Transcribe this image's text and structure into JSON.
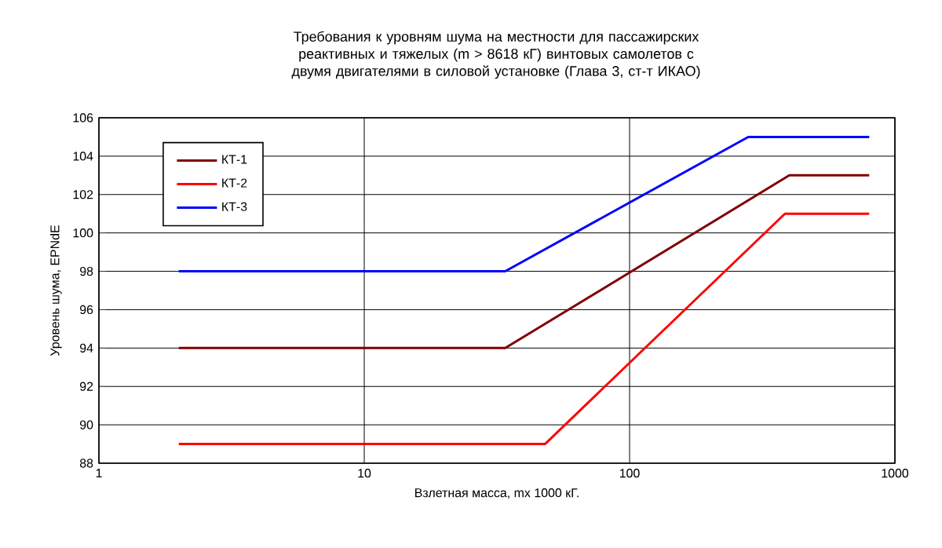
{
  "chart_data": {
    "type": "line",
    "title": "Требования к уровням шума на местности для пассажирских реактивных и тяжелых (m > 8618 кГ) винтовых самолетов с двумя двигателями в силовой установке (Глава 3, ст-т ИКАО)",
    "xlabel": "Взлетная масса, mx 1000 кГ.",
    "ylabel": "Уровень шума, EPNdE",
    "log": "x",
    "xlim": [
      1,
      1000
    ],
    "xticks": [
      1,
      10,
      100,
      1000
    ],
    "ylim": [
      88,
      106
    ],
    "yticks": [
      88,
      90,
      92,
      94,
      96,
      98,
      100,
      102,
      104,
      106
    ],
    "grid": true,
    "legend": "top left",
    "marker": "none",
    "line_style": "solid",
    "series": [
      {
        "name": "КТ-1",
        "color": "#800000",
        "x": [
          2,
          34,
          400,
          800
        ],
        "values": [
          94,
          94,
          103,
          103
        ]
      },
      {
        "name": "КТ-2",
        "color": "#ff0000",
        "x": [
          2,
          48,
          385,
          800
        ],
        "values": [
          89,
          89,
          101,
          101
        ]
      },
      {
        "name": "КТ-3",
        "color": "#0000ff",
        "x": [
          2,
          34,
          280,
          800
        ],
        "values": [
          98,
          98,
          105,
          105
        ]
      }
    ]
  }
}
